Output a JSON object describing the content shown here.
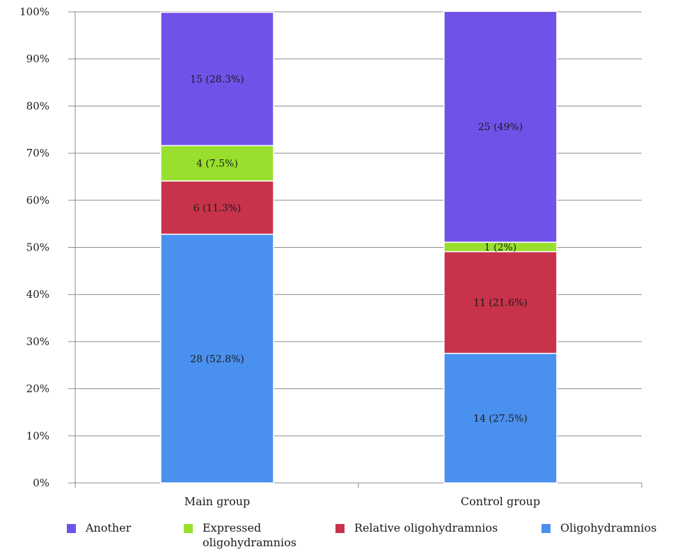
{
  "chart_data": {
    "type": "bar",
    "stacked": true,
    "categories": [
      "Main group",
      "Control group"
    ],
    "series": [
      {
        "name": "Oligohydramnios",
        "color": "#4a90ee",
        "values": [
          52.8,
          27.5
        ],
        "labels": [
          "28 (52.8%)",
          "14 (27.5%)"
        ]
      },
      {
        "name": "Relative oligohydramnios",
        "color": "#c8324a",
        "values": [
          11.3,
          21.6
        ],
        "labels": [
          "6 (11.3%)",
          "11 (21.6%)"
        ]
      },
      {
        "name": "Expressed oligohydramnios",
        "color": "#99e02e",
        "values": [
          7.5,
          2.0
        ],
        "labels": [
          "4 (7.5%)",
          "1 (2%)"
        ]
      },
      {
        "name": "Another",
        "color": "#7152e8",
        "values": [
          28.3,
          49.0
        ],
        "labels": [
          "15 (28.3%)",
          "25 (49%)"
        ]
      }
    ],
    "yticks": [
      "0%",
      "10%",
      "20%",
      "30%",
      "40%",
      "50%",
      "60%",
      "70%",
      "80%",
      "90%",
      "100%"
    ],
    "ylim": [
      0,
      100
    ],
    "grid": true,
    "legend": {
      "position": "bottom",
      "order": [
        "Another",
        "Expressed oligohydramnios",
        "Relative oligohydramnios",
        "Oligohydramnios"
      ],
      "lines": {
        "Another": [
          "Another"
        ],
        "Expressed oligohydramnios": [
          "Expressed",
          "oligohydramnios"
        ],
        "Relative oligohydramnios": [
          "Relative oligohydramnios"
        ],
        "Oligohydramnios": [
          "Oligohydramnios"
        ]
      }
    }
  }
}
